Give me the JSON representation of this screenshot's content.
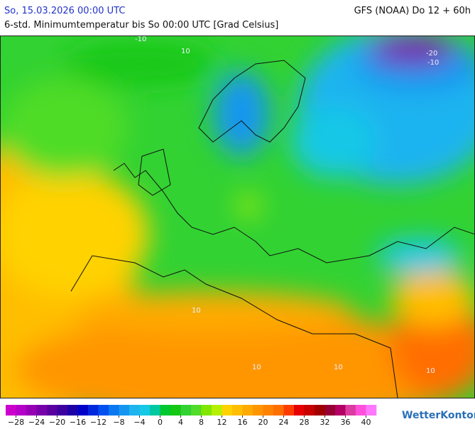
{
  "header": {
    "date": "So, 15.03.2026 00:00 UTC",
    "model": "GFS (NOAA) Do 12 + 60h",
    "subtitle": "6-std. Minimumtemperatur bis So 00:00 UTC [Grad Celsius]"
  },
  "map": {
    "contour_labels": [
      "-10",
      "10",
      "-20",
      "-10",
      "10",
      "10",
      "10",
      "10"
    ]
  },
  "legend": {
    "min": -30,
    "max": 42,
    "colors": [
      "#cc00cc",
      "#b400c8",
      "#9600b4",
      "#7800aa",
      "#5a00a0",
      "#3c00a0",
      "#1e00a8",
      "#0000c8",
      "#0028dc",
      "#0050f0",
      "#0a78f0",
      "#1496f0",
      "#1eb4f0",
      "#14c8e6",
      "#00c8a0",
      "#00c832",
      "#14c814",
      "#32d232",
      "#50dc28",
      "#82e600",
      "#b4f000",
      "#ffd200",
      "#ffbe00",
      "#ffaa00",
      "#ff9600",
      "#ff8200",
      "#ff6e00",
      "#ff3c00",
      "#e60000",
      "#c80000",
      "#a00000",
      "#960032",
      "#b40064",
      "#dc3ca0",
      "#ff50dc",
      "#ff78ff"
    ],
    "ticks": [
      {
        "value": -28,
        "label": "−28"
      },
      {
        "value": -24,
        "label": "−24"
      },
      {
        "value": -20,
        "label": "−20"
      },
      {
        "value": -16,
        "label": "−16"
      },
      {
        "value": -12,
        "label": "−12"
      },
      {
        "value": -8,
        "label": "−8"
      },
      {
        "value": -4,
        "label": "−4"
      },
      0,
      4,
      8,
      12,
      16,
      20,
      24,
      28,
      32,
      36,
      40
    ]
  },
  "logo": "WetterKontor"
}
